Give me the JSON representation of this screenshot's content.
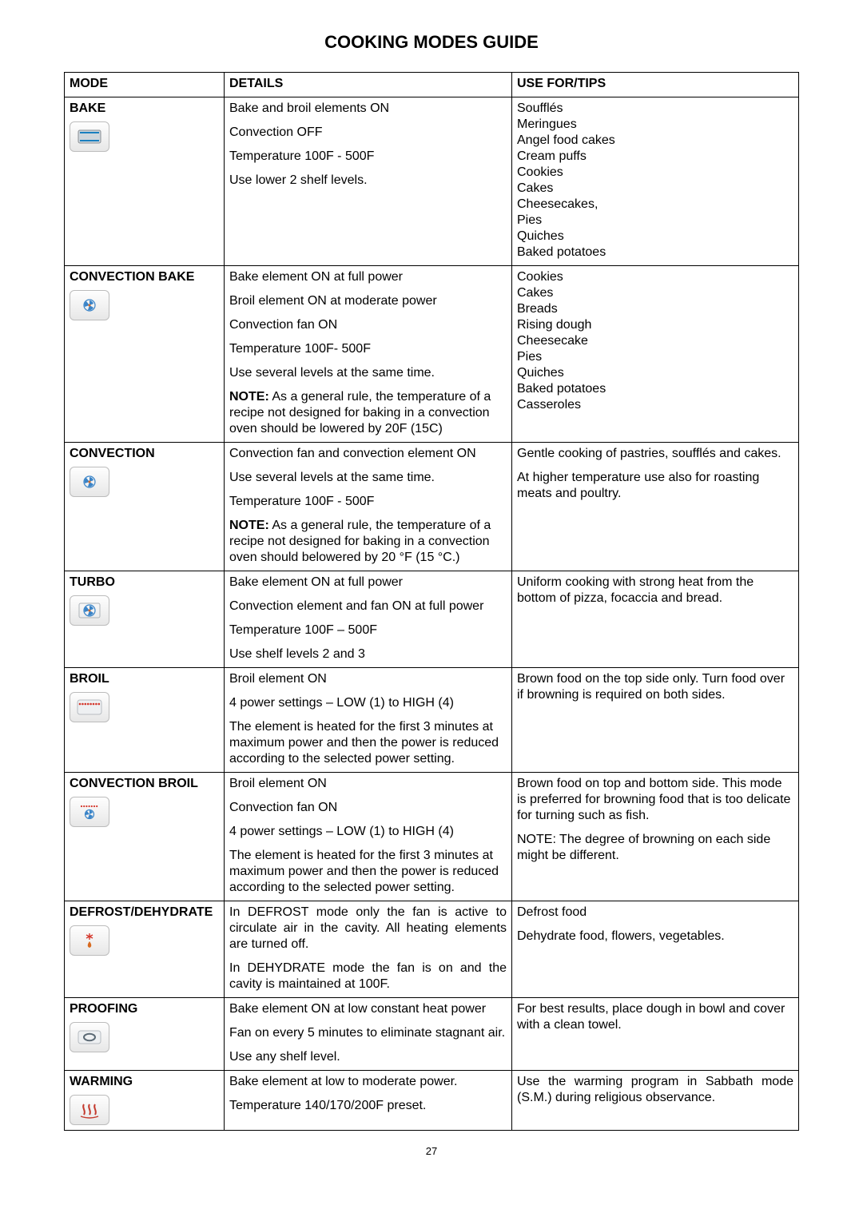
{
  "title": "COOKING MODES GUIDE",
  "page_number": "27",
  "headers": {
    "mode": "MODE",
    "details": "DETAILS",
    "tips": "USE FOR/TIPS"
  },
  "note_label": "NOTE:",
  "rows": [
    {
      "mode": "BAKE",
      "icon": "bake",
      "icon_colors": {
        "top": "#1a7fbf",
        "bottom": "#1a7fbf",
        "box": "#cfd6dc"
      },
      "details": [
        {
          "text": "Bake and broil elements ON"
        },
        {
          "text": "Convection OFF"
        },
        {
          "text": "Temperature 100F - 500F"
        },
        {
          "text": "Use lower 2 shelf levels."
        }
      ],
      "tips_list": [
        "Soufflés",
        "Meringues",
        "Angel food cakes",
        "Cream puffs",
        "Cookies",
        "Cakes",
        "Cheesecakes,",
        "Pies",
        "Quiches",
        "Baked potatoes"
      ]
    },
    {
      "mode": "CONVECTION BAKE",
      "icon": "conv-bake",
      "icon_colors": {
        "fan": "#3a84c8",
        "accent": "#d06a2b"
      },
      "details": [
        {
          "text": "Bake element ON at full power"
        },
        {
          "text": "Broil element ON at moderate power"
        },
        {
          "text": "Convection fan ON"
        },
        {
          "text": "Temperature 100F- 500F"
        },
        {
          "text": "Use several levels at the same time."
        },
        {
          "note": true,
          "text": " As a general rule, the temperature of a recipe not designed for baking in a convection oven should be lowered by 20F (15C)"
        }
      ],
      "tips_list": [
        "Cookies",
        "Cakes",
        "Breads",
        "Rising dough",
        "Cheesecake",
        "Pies",
        "Quiches",
        "Baked potatoes",
        "Casseroles"
      ]
    },
    {
      "mode": "CONVECTION",
      "icon": "convection",
      "icon_colors": {
        "fan": "#3a84c8",
        "accent": "#d06a2b"
      },
      "details": [
        {
          "text": "Convection fan and convection element ON"
        },
        {
          "text": "Use several levels at the same time."
        },
        {
          "text": "Temperature 100F - 500F"
        },
        {
          "note": true,
          "text": " As a general rule, the temperature of a recipe not designed for baking in a convection oven should belowered by 20 °F (15 °C.)"
        }
      ],
      "tips_paras": [
        {
          "text": "Gentle cooking of pastries, soufflés and cakes.",
          "justify": true
        },
        {
          "text": "At higher temperature use also for roasting meats and poultry."
        }
      ]
    },
    {
      "mode": "TURBO",
      "icon": "turbo",
      "icon_colors": {
        "fan": "#3a84c8",
        "accent": "#d06a2b"
      },
      "details": [
        {
          "text": "Bake element ON at full power"
        },
        {
          "text": "Convection element and fan ON at full power"
        },
        {
          "text": "Temperature 100F – 500F"
        },
        {
          "text": "Use shelf levels 2 and 3"
        }
      ],
      "tips_paras": [
        {
          "text": "Uniform cooking with strong heat from the bottom of pizza, focaccia and bread."
        }
      ]
    },
    {
      "mode": "BROIL",
      "icon": "broil",
      "icon_colors": {
        "dots": "#d4352a"
      },
      "details": [
        {
          "text": "Broil element ON"
        },
        {
          "text": "4 power settings – LOW (1) to HIGH (4)"
        },
        {
          "text": "The element is heated for the first 3 minutes at maximum power and then the power is reduced according to the selected power setting."
        }
      ],
      "tips_paras": [
        {
          "text": "Brown food on the top side only. Turn food over if browning is required on both sides."
        }
      ]
    },
    {
      "mode": "CONVECTION BROIL",
      "icon": "conv-broil",
      "icon_colors": {
        "fan": "#3a84c8",
        "dots": "#d4352a"
      },
      "details": [
        {
          "text": "Broil element ON"
        },
        {
          "text": "Convection fan ON"
        },
        {
          "text": "4 power settings – LOW (1) to HIGH (4)"
        },
        {
          "text": "The element is heated for the first 3 minutes at maximum power and then the power is reduced according to the selected power setting."
        }
      ],
      "tips_paras": [
        {
          "text": "Brown food on top and bottom side. This mode is preferred for browning food that is too delicate for turning such as fish."
        },
        {
          "text": "NOTE: The degree of browning on each side might be different."
        }
      ]
    },
    {
      "mode": "DEFROST/DEHYDRATE",
      "icon": "defrost",
      "icon_colors": {
        "flake": "#d4352a",
        "drop": "#d86a1f"
      },
      "details": [
        {
          "text": "In DEFROST mode only the fan is active to circulate air in the cavity. All heating elements are turned off.",
          "justify": true
        },
        {
          "text": "In DEHYDRATE mode the fan is on and the cavity is maintained at 100F.",
          "justify": true
        }
      ],
      "tips_paras": [
        {
          "text": "Defrost food"
        },
        {
          "text": "Dehydrate food, flowers, vegetables."
        }
      ]
    },
    {
      "mode": "PROOFING",
      "icon": "proofing",
      "icon_colors": {
        "ring": "#5c6a75"
      },
      "details": [
        {
          "text": "Bake element ON at low constant heat power"
        },
        {
          "text": "Fan on every 5 minutes to eliminate stagnant air."
        },
        {
          "text": "Use any shelf level."
        }
      ],
      "tips_paras": [
        {
          "text": "For best results, place dough in bowl and cover with a clean towel."
        }
      ]
    },
    {
      "mode": "WARMING",
      "icon": "warming",
      "icon_colors": {
        "wave": "#c43a2e"
      },
      "details": [
        {
          "text": "Bake element at low to moderate power."
        },
        {
          "text": "Temperature 140/170/200F preset."
        }
      ],
      "tips_paras": [
        {
          "text": "Use the warming program in Sabbath mode (S.M.) during religious observance.",
          "justify": true
        }
      ]
    }
  ]
}
